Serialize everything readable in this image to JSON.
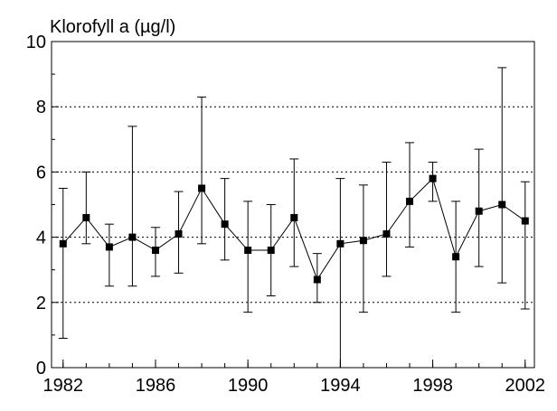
{
  "chart_data": {
    "type": "errorbar-line",
    "title": "Klorofyll a (µg/l)",
    "x": [
      1982,
      1983,
      1984,
      1985,
      1986,
      1987,
      1988,
      1989,
      1990,
      1991,
      1992,
      1993,
      1994,
      1995,
      1996,
      1997,
      1998,
      1999,
      2000,
      2001,
      2002
    ],
    "series": [
      {
        "color": "#000000",
        "values": [
          3.8,
          4.6,
          3.7,
          4.0,
          3.6,
          4.1,
          5.5,
          4.4,
          3.6,
          3.6,
          4.6,
          2.7,
          3.8,
          3.9,
          4.1,
          5.1,
          5.8,
          3.4,
          4.8,
          5.0,
          4.5
        ],
        "low": [
          0.9,
          3.8,
          2.5,
          2.5,
          2.8,
          2.9,
          3.8,
          3.3,
          1.7,
          2.2,
          3.1,
          2.0,
          0.0,
          1.7,
          2.8,
          3.7,
          5.1,
          1.7,
          3.1,
          2.6,
          1.8
        ],
        "high": [
          5.5,
          6.0,
          4.4,
          7.4,
          4.3,
          5.4,
          8.3,
          5.8,
          5.1,
          5.0,
          6.4,
          3.5,
          5.8,
          5.6,
          6.3,
          6.9,
          6.3,
          5.1,
          6.7,
          9.2,
          5.7
        ]
      }
    ],
    "xlim": [
      1981.5,
      2002.4
    ],
    "xticks": [
      1982,
      1986,
      1990,
      1994,
      1998,
      2002
    ],
    "ylim": [
      0,
      10
    ],
    "yticks": [
      0,
      2,
      4,
      6,
      8,
      10
    ],
    "grid": true
  }
}
